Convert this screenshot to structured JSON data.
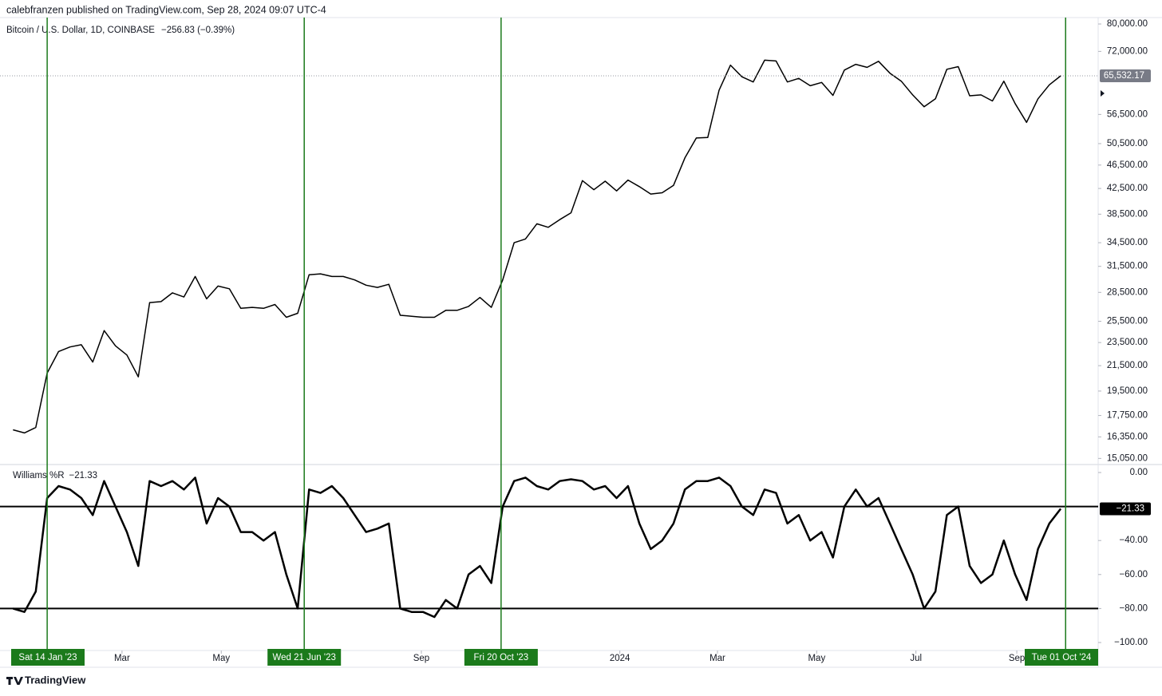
{
  "header": "calebfranzen published on TradingView.com, Sep 28, 2024 09:07 UTC-4",
  "footer": "TradingView",
  "chart_data": [
    {
      "type": "line",
      "title": "Bitcoin / U.S. Dollar, 1D, COINBASE",
      "subtitle": "−256.83 (−0.39%)",
      "log_scale": true,
      "color": "#000000",
      "x": [
        "2022-12-24",
        "2022-12-31",
        "2023-01-07",
        "2023-01-14",
        "2023-01-21",
        "2023-01-28",
        "2023-02-04",
        "2023-02-11",
        "2023-02-18",
        "2023-02-25",
        "2023-03-04",
        "2023-03-11",
        "2023-03-18",
        "2023-03-25",
        "2023-04-01",
        "2023-04-08",
        "2023-04-15",
        "2023-04-22",
        "2023-04-29",
        "2023-05-06",
        "2023-05-13",
        "2023-05-20",
        "2023-05-27",
        "2023-06-03",
        "2023-06-10",
        "2023-06-17",
        "2023-06-24",
        "2023-07-01",
        "2023-07-08",
        "2023-07-15",
        "2023-07-22",
        "2023-07-29",
        "2023-08-05",
        "2023-08-12",
        "2023-08-19",
        "2023-08-26",
        "2023-09-02",
        "2023-09-09",
        "2023-09-16",
        "2023-09-23",
        "2023-09-30",
        "2023-10-07",
        "2023-10-14",
        "2023-10-21",
        "2023-10-28",
        "2023-11-04",
        "2023-11-11",
        "2023-11-18",
        "2023-11-25",
        "2023-12-02",
        "2023-12-09",
        "2023-12-16",
        "2023-12-23",
        "2023-12-30",
        "2024-01-06",
        "2024-01-13",
        "2024-01-20",
        "2024-01-27",
        "2024-02-03",
        "2024-02-10",
        "2024-02-17",
        "2024-02-24",
        "2024-03-02",
        "2024-03-09",
        "2024-03-16",
        "2024-03-23",
        "2024-03-30",
        "2024-04-06",
        "2024-04-13",
        "2024-04-20",
        "2024-04-27",
        "2024-05-04",
        "2024-05-11",
        "2024-05-18",
        "2024-05-25",
        "2024-06-01",
        "2024-06-08",
        "2024-06-15",
        "2024-06-22",
        "2024-06-29",
        "2024-07-06",
        "2024-07-13",
        "2024-07-20",
        "2024-07-27",
        "2024-08-03",
        "2024-08-10",
        "2024-08-17",
        "2024-08-24",
        "2024-08-31",
        "2024-09-07",
        "2024-09-14",
        "2024-09-21",
        "2024-09-28"
      ],
      "values": [
        16800,
        16600,
        16950,
        20900,
        22700,
        23100,
        23300,
        21800,
        24600,
        23200,
        22400,
        20600,
        27400,
        27500,
        28450,
        28000,
        30300,
        27800,
        29200,
        28900,
        26800,
        26900,
        26800,
        27200,
        25900,
        26300,
        30500,
        30600,
        30300,
        30300,
        29900,
        29300,
        29050,
        29400,
        26100,
        26000,
        25900,
        25900,
        26600,
        26600,
        27000,
        27950,
        26900,
        29900,
        34500,
        35000,
        37100,
        36600,
        37700,
        38700,
        43800,
        42300,
        43700,
        42100,
        43900,
        42800,
        41600,
        41800,
        43000,
        47800,
        51600,
        51700,
        62000,
        68300,
        65300,
        64000,
        69600,
        69400,
        64000,
        64900,
        63100,
        63900,
        60800,
        67000,
        68500,
        67700,
        69300,
        66200,
        64200,
        60900,
        58200,
        60000,
        67200,
        67900,
        60700,
        60900,
        59500,
        64200,
        58900,
        54800,
        60000,
        63300,
        65532.17
      ],
      "xlim": [
        "2022-12-16",
        "2024-10-21"
      ],
      "ylim": [
        14700,
        82000
      ],
      "yticks": [
        {
          "value": 80000,
          "label": "80,000.00"
        },
        {
          "value": 72000,
          "label": "72,000.00"
        },
        {
          "value": 56500,
          "label": "56,500.00"
        },
        {
          "value": 50500,
          "label": "50,500.00"
        },
        {
          "value": 46500,
          "label": "46,500.00"
        },
        {
          "value": 42500,
          "label": "42,500.00"
        },
        {
          "value": 38500,
          "label": "38,500.00"
        },
        {
          "value": 34500,
          "label": "34,500.00"
        },
        {
          "value": 31500,
          "label": "31,500.00"
        },
        {
          "value": 28500,
          "label": "28,500.00"
        },
        {
          "value": 25500,
          "label": "25,500.00"
        },
        {
          "value": 23500,
          "label": "23,500.00"
        },
        {
          "value": 21500,
          "label": "21,500.00"
        },
        {
          "value": 19500,
          "label": "19,500.00"
        },
        {
          "value": 17750,
          "label": "17,750.00"
        },
        {
          "value": 16350,
          "label": "16,350.00"
        },
        {
          "value": 15050,
          "label": "15,050.00"
        }
      ],
      "last_value": {
        "value": 65532.17,
        "label": "65,532.17"
      }
    },
    {
      "type": "line",
      "title": "Williams %R",
      "color": "#000000",
      "x": [
        "2022-12-24",
        "2022-12-31",
        "2023-01-07",
        "2023-01-14",
        "2023-01-21",
        "2023-01-28",
        "2023-02-04",
        "2023-02-11",
        "2023-02-18",
        "2023-02-25",
        "2023-03-04",
        "2023-03-11",
        "2023-03-18",
        "2023-03-25",
        "2023-04-01",
        "2023-04-08",
        "2023-04-15",
        "2023-04-22",
        "2023-04-29",
        "2023-05-06",
        "2023-05-13",
        "2023-05-20",
        "2023-05-27",
        "2023-06-03",
        "2023-06-10",
        "2023-06-17",
        "2023-06-24",
        "2023-07-01",
        "2023-07-08",
        "2023-07-15",
        "2023-07-22",
        "2023-07-29",
        "2023-08-05",
        "2023-08-12",
        "2023-08-19",
        "2023-08-26",
        "2023-09-02",
        "2023-09-09",
        "2023-09-16",
        "2023-09-23",
        "2023-09-30",
        "2023-10-07",
        "2023-10-14",
        "2023-10-21",
        "2023-10-28",
        "2023-11-04",
        "2023-11-11",
        "2023-11-18",
        "2023-11-25",
        "2023-12-02",
        "2023-12-09",
        "2023-12-16",
        "2023-12-23",
        "2023-12-30",
        "2024-01-06",
        "2024-01-13",
        "2024-01-20",
        "2024-01-27",
        "2024-02-03",
        "2024-02-10",
        "2024-02-17",
        "2024-02-24",
        "2024-03-02",
        "2024-03-09",
        "2024-03-16",
        "2024-03-23",
        "2024-03-30",
        "2024-04-06",
        "2024-04-13",
        "2024-04-20",
        "2024-04-27",
        "2024-05-04",
        "2024-05-11",
        "2024-05-18",
        "2024-05-25",
        "2024-06-01",
        "2024-06-08",
        "2024-06-15",
        "2024-06-22",
        "2024-06-29",
        "2024-07-06",
        "2024-07-13",
        "2024-07-20",
        "2024-07-27",
        "2024-08-03",
        "2024-08-10",
        "2024-08-17",
        "2024-08-24",
        "2024-08-31",
        "2024-09-07",
        "2024-09-14",
        "2024-09-21",
        "2024-09-28"
      ],
      "values": [
        -80,
        -82,
        -70,
        -15,
        -8,
        -10,
        -15,
        -25,
        -5,
        -20,
        -35,
        -55,
        -5,
        -8,
        -5,
        -10,
        -3,
        -30,
        -15,
        -20,
        -35,
        -35,
        -40,
        -35,
        -60,
        -80,
        -10,
        -12,
        -8,
        -15,
        -25,
        -35,
        -33,
        -30,
        -80,
        -82,
        -82,
        -85,
        -75,
        -80,
        -60,
        -55,
        -65,
        -20,
        -5,
        -3,
        -8,
        -10,
        -5,
        -4,
        -5,
        -10,
        -8,
        -15,
        -8,
        -30,
        -45,
        -40,
        -30,
        -10,
        -5,
        -5,
        -3,
        -8,
        -20,
        -25,
        -10,
        -12,
        -30,
        -25,
        -40,
        -35,
        -50,
        -20,
        -10,
        -20,
        -15,
        -30,
        -45,
        -60,
        -80,
        -70,
        -25,
        -20,
        -55,
        -65,
        -60,
        -40,
        -60,
        -75,
        -45,
        -30,
        -21.33
      ],
      "xlim": [
        "2022-12-16",
        "2024-10-21"
      ],
      "ylim": [
        -104.7,
        4.7
      ],
      "yticks": [
        {
          "value": 0,
          "label": "0.00"
        },
        {
          "value": -40,
          "label": "−40.00"
        },
        {
          "value": -60,
          "label": "−60.00"
        },
        {
          "value": -80,
          "label": "−80.00"
        },
        {
          "value": -100,
          "label": "−100.00"
        }
      ],
      "bands": [
        -20,
        -80
      ],
      "last_value": {
        "value": -21.33,
        "label": "−21.33"
      },
      "xticks": [
        {
          "value": "2023-03-01",
          "label": "Mar"
        },
        {
          "value": "2023-05-01",
          "label": "May"
        },
        {
          "value": "2023-09-01",
          "label": "Sep"
        },
        {
          "value": "2024-01-01",
          "label": "2024"
        },
        {
          "value": "2024-03-01",
          "label": "Mar"
        },
        {
          "value": "2024-05-01",
          "label": "May"
        },
        {
          "value": "2024-07-01",
          "label": "Jul"
        },
        {
          "value": "2024-09-01",
          "label": "Sep"
        }
      ],
      "markers": [
        {
          "value": "2023-01-14",
          "label": "Sat 14 Jan '23"
        },
        {
          "value": "2023-06-21",
          "label": "Wed 21 Jun '23"
        },
        {
          "value": "2023-10-20",
          "label": "Fri 20 Oct '23"
        },
        {
          "value": "2024-10-01",
          "label": "Tue 01 Oct '24"
        }
      ],
      "marker_color": "#1b7a1b"
    }
  ]
}
